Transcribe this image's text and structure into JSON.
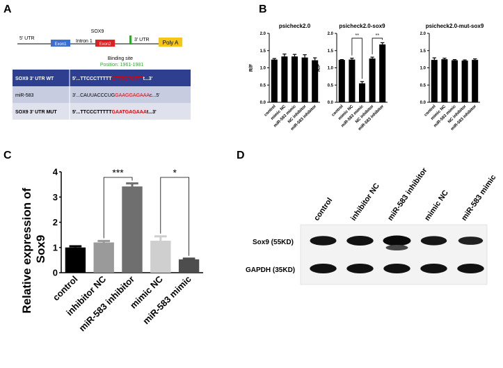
{
  "panels": {
    "A": {
      "letter": "A",
      "gene": "SOX9",
      "utr5": "5' UTR",
      "exon1": "Exon1",
      "intron1": "Intron 1",
      "exon2": "Exon2",
      "utr3": "3' UTR",
      "polya": "Poly A",
      "binding_site": "Binding site",
      "position": "Position: 1961-1981",
      "rows": [
        {
          "label": "SOX9 3' UTR WT",
          "seq_black": "5'...TTCCCTTTTT",
          "seq_red": "CTTTCTCTTT",
          "seq_tail": "t...3'"
        },
        {
          "label": "miR-583",
          "seq_black": "3'...CAUUACCCUG",
          "seq_red": "GAAGGAGAAA",
          "seq_tail": "c...5'"
        },
        {
          "label": "SOX9 3' UTR MUT",
          "seq_black": "5'...TTCCCTTTTT",
          "seq_red": "GAATGAGAAA",
          "seq_tail": "t...3'"
        }
      ],
      "colors": {
        "exon1": "#3a6fd0",
        "exon2": "#e02020",
        "polya": "#f5c518",
        "marker": "#2fa82f",
        "table_header": "#2e3f8f",
        "table_row": "#c8cce0"
      }
    },
    "B": {
      "letter": "B",
      "ylabel": "R/F"
    },
    "C": {
      "letter": "C",
      "ylabel_line1": "Relative expression of",
      "ylabel_line2": "Sox9"
    },
    "D": {
      "letter": "D",
      "lanes": [
        "control",
        "inhibitor NC",
        "miR-583 inhibitor",
        "mimic NC",
        "miR-583 mimic"
      ],
      "rows": [
        {
          "label": "Sox9 (55KD)",
          "intensity": [
            0.8,
            0.85,
            1.0,
            0.75,
            0.55
          ]
        },
        {
          "label": "GAPDH (35KD)",
          "intensity": [
            0.85,
            0.85,
            0.85,
            0.85,
            0.85
          ]
        }
      ]
    }
  },
  "chart_data": [
    {
      "type": "bar",
      "title": "psicheck2.0",
      "ylabel": "R/F",
      "categories": [
        "control",
        "mimic NC",
        "miR-583 mimic",
        "NC inhibitor",
        "miR-583 inhibitor"
      ],
      "values": [
        1.24,
        1.33,
        1.33,
        1.3,
        1.22
      ],
      "errors": [
        0.03,
        0.07,
        0.06,
        0.08,
        0.07
      ],
      "ylim": [
        0,
        2.0
      ],
      "yticks": [
        "0.0",
        "0.5",
        "1.0",
        "1.5",
        "2.0"
      ],
      "yticks_num": [
        0,
        0.5,
        1.0,
        1.5,
        2.0
      ]
    },
    {
      "type": "bar",
      "title": "psicheck2.0-sox9",
      "ylabel": "R/F",
      "categories": [
        "control",
        "mimic NC",
        "miR-583 mimic",
        "NC inhibitor",
        "miR-583 inhibitor"
      ],
      "values": [
        1.23,
        1.24,
        0.55,
        1.27,
        1.68
      ],
      "errors": [
        0.01,
        0.04,
        0.05,
        0.04,
        0.05
      ],
      "ylim": [
        0,
        2.0
      ],
      "yticks": [
        "0.0",
        "0.5",
        "1.0",
        "1.5",
        "2.0"
      ],
      "yticks_num": [
        0,
        0.5,
        1.0,
        1.5,
        2.0
      ],
      "annotations": [
        {
          "from": 1,
          "to": 2,
          "text": "**",
          "y": 1.86
        },
        {
          "from": 3,
          "to": 4,
          "text": "**",
          "y": 1.86
        }
      ]
    },
    {
      "type": "bar",
      "title": "psicheck2.0-mut-sox9",
      "categories": [
        "control",
        "mimic NC",
        "miR-583 mimic",
        "NC inhibitor",
        "miR-583 inhibitor"
      ],
      "values": [
        1.23,
        1.25,
        1.22,
        1.21,
        1.23
      ],
      "errors": [
        0.06,
        0.03,
        0.02,
        0.02,
        0.03
      ],
      "ylim": [
        0,
        2.0
      ],
      "yticks": [
        "0.0",
        "0.5",
        "1.0",
        "1.5",
        "2.0"
      ],
      "yticks_num": [
        0,
        0.5,
        1.0,
        1.5,
        2.0
      ]
    },
    {
      "type": "bar",
      "ylabel": "Relative expression of Sox9",
      "categories": [
        "control",
        "inhibitor NC",
        "miR-583 inhibitor",
        "mimic NC",
        "miR-583 mimic"
      ],
      "values": [
        1.0,
        1.2,
        3.42,
        1.27,
        0.53
      ],
      "errors": [
        0.05,
        0.06,
        0.12,
        0.17,
        0.03
      ],
      "colors": [
        "#000000",
        "#9a9a9a",
        "#6f6f6f",
        "#cfcfcf",
        "#4d4d4d"
      ],
      "ylim": [
        0,
        4
      ],
      "yticks": [
        "0",
        "1",
        "2",
        "3",
        "4"
      ],
      "yticks_num": [
        0,
        1,
        2,
        3,
        4
      ],
      "annotations": [
        {
          "from": 1,
          "to": 2,
          "text": "***",
          "y": 3.78
        },
        {
          "from": 3,
          "to": 4,
          "text": "*",
          "y": 3.78
        }
      ]
    }
  ]
}
